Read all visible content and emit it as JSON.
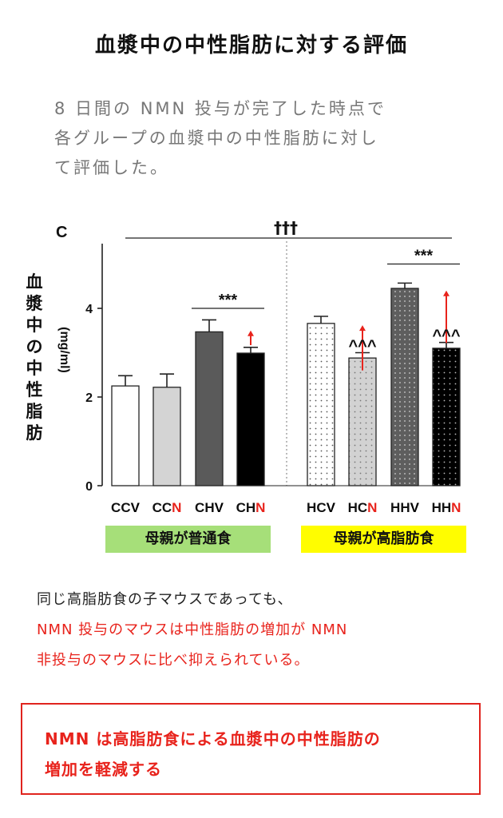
{
  "page": {
    "title": "血漿中の中性脂肪に対する評価",
    "intro_lines": [
      "8 日間の NMN 投与が完了した時点で",
      "各グループの血漿中の中性脂肪に対し",
      "て評価した。"
    ],
    "note_lines": [
      {
        "text": "同じ高脂肪食の子マウスであっても、",
        "color": "black"
      },
      {
        "text": "NMN 投与のマウスは中性脂肪の増加が NMN",
        "color": "red"
      },
      {
        "text": "非投与のマウスに比べ抑えられている。",
        "color": "red"
      }
    ],
    "summary_lines": [
      "NMN は高脂肪食による血漿中の中性脂肪の",
      "増加を軽減する"
    ]
  },
  "chart_data": {
    "type": "bar",
    "panel_label": "C",
    "ylabel_vertical": "血漿中の中性脂肪",
    "ylabel_unit": "(mg/ml)",
    "ylim": [
      0,
      5.5
    ],
    "yticks": [
      "0",
      "2",
      "4"
    ],
    "ytick_values": [
      0,
      2,
      4
    ],
    "categories": [
      {
        "prefix": "CC",
        "suffix": "V",
        "suffix_color": "#000000"
      },
      {
        "prefix": "CC",
        "suffix": "N",
        "suffix_color": "#e8231c"
      },
      {
        "prefix": "CH",
        "suffix": "V",
        "suffix_color": "#000000"
      },
      {
        "prefix": "CH",
        "suffix": "N",
        "suffix_color": "#e8231c"
      },
      {
        "prefix": "HC",
        "suffix": "V",
        "suffix_color": "#000000"
      },
      {
        "prefix": "HC",
        "suffix": "N",
        "suffix_color": "#e8231c"
      },
      {
        "prefix": "HH",
        "suffix": "V",
        "suffix_color": "#000000"
      },
      {
        "prefix": "HH",
        "suffix": "N",
        "suffix_color": "#e8231c"
      }
    ],
    "values": [
      2.25,
      2.22,
      3.47,
      2.99,
      3.66,
      2.88,
      4.45,
      3.1
    ],
    "errors": [
      0.23,
      0.3,
      0.27,
      0.13,
      0.16,
      0.12,
      0.12,
      0.13
    ],
    "fills": [
      "#ffffff",
      "#d4d4d4",
      "#5a5a5a",
      "#000000",
      "dots-white",
      "dots-grey",
      "dots-dark",
      "dots-black"
    ],
    "red_arrows": [
      {
        "bar": 3,
        "from": 3.17,
        "to": 3.5
      },
      {
        "bar": 5,
        "from": 2.6,
        "to": 3.62
      },
      {
        "bar": 7,
        "from": 3.22,
        "to": 4.4
      }
    ],
    "significance": [
      {
        "label": "***",
        "type": "bracket",
        "from_bar": 2,
        "to_bar": 3,
        "y": 4.0
      },
      {
        "label": "***",
        "type": "bracket",
        "from_bar": 6,
        "to_bar": 7,
        "y": 5.0
      },
      {
        "label": "^^^",
        "type": "above",
        "bar": 5
      },
      {
        "label": "^^^",
        "type": "above",
        "bar": 7
      },
      {
        "label": "†††",
        "type": "top",
        "from_bar": 0,
        "to_bar": 7
      }
    ],
    "group_labels": [
      {
        "text": "母親が普通食",
        "color": "#a6df79",
        "bars": [
          0,
          3
        ]
      },
      {
        "text": "母親が高脂肪食",
        "color": "#fffd00",
        "bars": [
          4,
          7
        ]
      }
    ]
  }
}
